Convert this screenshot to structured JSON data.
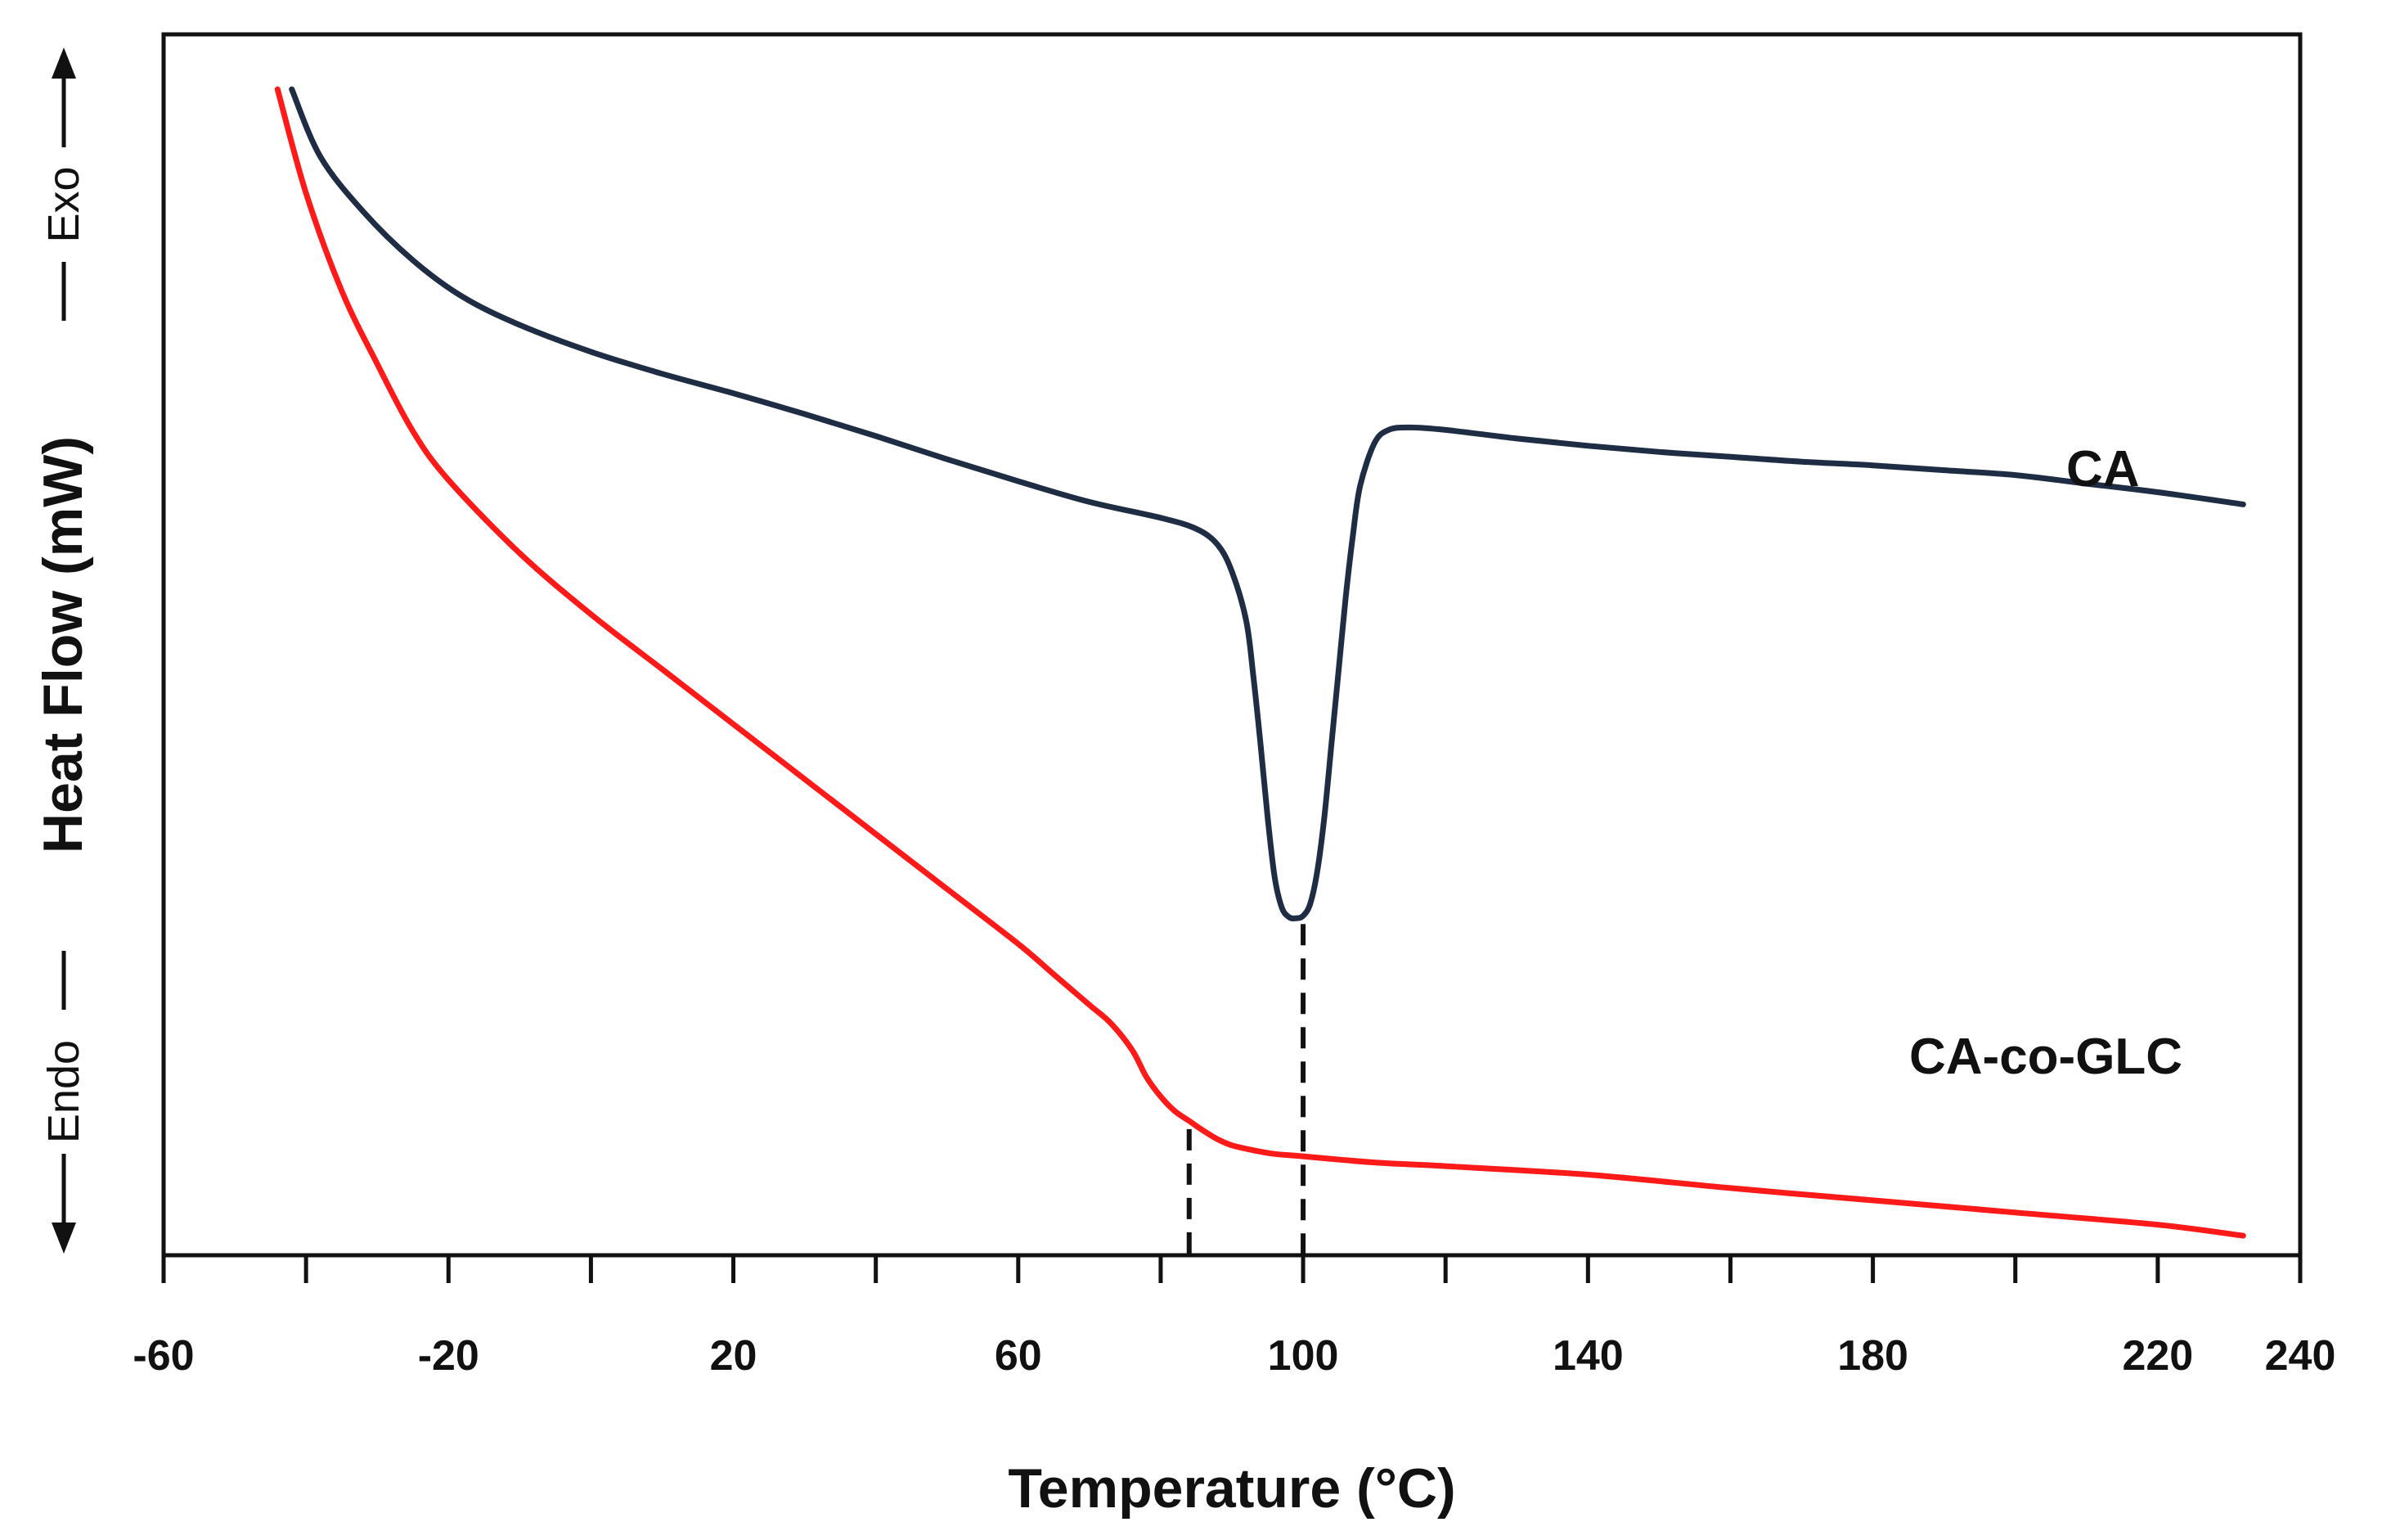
{
  "chart_data": {
    "type": "line",
    "title": "",
    "xlabel": "Temperature (°C)",
    "ylabel": "Heat Flow (mW)",
    "exo_label": "Exo",
    "endo_label": "Endo",
    "xlim": [
      -60,
      240
    ],
    "ylim": [
      0,
      100
    ],
    "xticks": [
      -60,
      -20,
      20,
      60,
      100,
      140,
      180,
      220,
      240
    ],
    "xtick_labels": [
      "-60",
      "-20",
      "20",
      "60",
      "100",
      "140",
      "180",
      "220",
      "240"
    ],
    "minor_xticks": [
      -40,
      0,
      40,
      80,
      120,
      160,
      200
    ],
    "y_values_note": "arbitrary units (no y-axis scale shown)",
    "series": [
      {
        "name": "CA",
        "color": "#1f2d44",
        "x": [
          -42,
          -38,
          -32,
          -25,
          -18,
          -10,
          0,
          10,
          20,
          30,
          40,
          50,
          60,
          70,
          80,
          85,
          88,
          90,
          92,
          93,
          94,
          95,
          96,
          97,
          98,
          99,
          100,
          101,
          102,
          103,
          104,
          105,
          106,
          107,
          108,
          110,
          112,
          115,
          120,
          130,
          140,
          150,
          160,
          170,
          180,
          190,
          200,
          210,
          220,
          232
        ],
        "y": [
          95.5,
          90,
          85.5,
          81.5,
          78.5,
          76.2,
          74,
          72.2,
          70.6,
          68.9,
          67.1,
          65.2,
          63.4,
          61.7,
          60.4,
          59.5,
          58.2,
          56,
          52,
          47.5,
          42,
          36,
          31,
          28.5,
          27.7,
          27.6,
          27.8,
          28.8,
          31.5,
          36,
          42,
          48,
          54,
          59,
          63,
          66.5,
          67.6,
          67.8,
          67.6,
          66.9,
          66.3,
          65.8,
          65.4,
          65,
          64.7,
          64.3,
          63.9,
          63.2,
          62.5,
          61.5
        ]
      },
      {
        "name": "CA-co-GLC",
        "color": "#ff1a1a",
        "x": [
          -44,
          -40,
          -35,
          -30,
          -25,
          -20,
          -10,
          0,
          10,
          20,
          30,
          40,
          50,
          60,
          65,
          70,
          73,
          76,
          78,
          80,
          82,
          84,
          86,
          88,
          90,
          93,
          96,
          100,
          110,
          120,
          140,
          160,
          180,
          200,
          220,
          232
        ],
        "y": [
          95.5,
          87,
          79,
          73,
          67.5,
          63.5,
          57.5,
          52.5,
          48,
          43.5,
          39,
          34.5,
          30,
          25.5,
          23,
          20.5,
          19,
          16.8,
          14.6,
          13,
          11.8,
          11,
          10.2,
          9.5,
          9,
          8.6,
          8.3,
          8.1,
          7.6,
          7.3,
          6.6,
          5.5,
          4.5,
          3.5,
          2.5,
          1.6
        ]
      }
    ],
    "series_labels": [
      "CA",
      "CA-co-GLC"
    ],
    "annotations": [
      {
        "type": "dashed-vline",
        "x": 100,
        "from_series": "CA"
      },
      {
        "type": "dashed-vline",
        "x": 84,
        "from_series": "CA-co-GLC"
      }
    ]
  }
}
